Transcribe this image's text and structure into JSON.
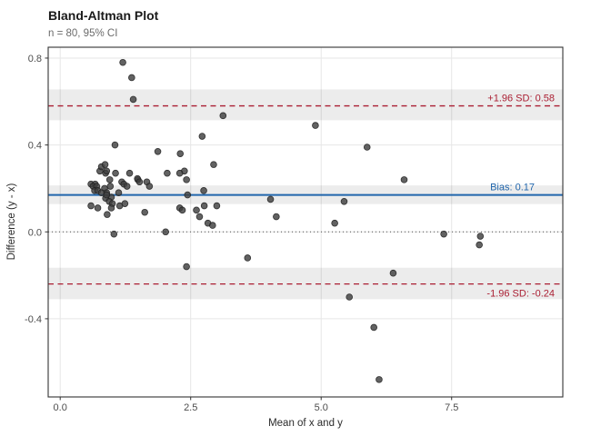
{
  "chart_data": {
    "type": "scatter",
    "title": "Bland-Altman Plot",
    "subtitle": "n = 80, 95% CI",
    "xlabel": "Mean of x and y",
    "ylabel": "Difference (y - x)",
    "xlim": [
      -0.23,
      9.63
    ],
    "ylim": [
      -0.76,
      0.85
    ],
    "x_ticks": [
      {
        "v": 0.0,
        "label": "0.0"
      },
      {
        "v": 2.5,
        "label": "2.5"
      },
      {
        "v": 5.0,
        "label": "5.0"
      },
      {
        "v": 7.5,
        "label": "7.5"
      }
    ],
    "y_ticks": [
      {
        "v": -0.4,
        "label": "-0.4"
      },
      {
        "v": 0.0,
        "label": "0.0"
      },
      {
        "v": 0.4,
        "label": "0.4"
      },
      {
        "v": 0.8,
        "label": "0.8"
      }
    ],
    "grid": true,
    "legend": "none",
    "zero_line": {
      "y": 0.0,
      "style": "dotted",
      "color": "#4d4d4d"
    },
    "reference_lines": [
      {
        "name": "upper-loa",
        "label": "+1.96 SD: 0.58",
        "y": 0.58,
        "ci": [
          0.514,
          0.656
        ],
        "color": "#aa1e32",
        "style": "dashed",
        "label_position": "above"
      },
      {
        "name": "bias",
        "label": "Bias: 0.17",
        "y": 0.17,
        "ci": [
          0.128,
          0.214
        ],
        "color": "#2166ac",
        "style": "solid",
        "label_position": "above"
      },
      {
        "name": "lower-loa",
        "label": "-1.96 SD: -0.24",
        "y": -0.24,
        "ci": [
          -0.31,
          -0.165
        ],
        "color": "#aa1e32",
        "style": "dashed",
        "label_position": "below"
      }
    ],
    "point_color": "#3f3f3f",
    "band_color": "#ececec",
    "grid_color": "#e6e6e6",
    "n_points": 80,
    "points": [
      [
        1.2,
        0.78
      ],
      [
        1.37,
        0.71
      ],
      [
        1.4,
        0.61
      ],
      [
        3.12,
        0.535
      ],
      [
        4.89,
        0.49
      ],
      [
        5.88,
        0.39
      ],
      [
        2.72,
        0.44
      ],
      [
        1.05,
        0.4
      ],
      [
        1.87,
        0.37
      ],
      [
        2.3,
        0.36
      ],
      [
        2.94,
        0.31
      ],
      [
        6.59,
        0.24
      ],
      [
        7.35,
        -0.01
      ],
      [
        8.05,
        -0.02
      ],
      [
        8.03,
        -0.06
      ],
      [
        6.38,
        -0.19
      ],
      [
        5.54,
        -0.3
      ],
      [
        6.01,
        -0.44
      ],
      [
        6.11,
        -0.68
      ],
      [
        3.59,
        -0.12
      ],
      [
        2.42,
        -0.16
      ],
      [
        1.03,
        -0.01
      ],
      [
        2.02,
        0.0
      ],
      [
        2.42,
        0.24
      ],
      [
        2.75,
        0.19
      ],
      [
        2.44,
        0.17
      ],
      [
        4.03,
        0.15
      ],
      [
        2.29,
        0.11
      ],
      [
        2.34,
        0.1
      ],
      [
        2.61,
        0.1
      ],
      [
        2.76,
        0.12
      ],
      [
        3.0,
        0.12
      ],
      [
        2.67,
        0.07
      ],
      [
        2.83,
        0.04
      ],
      [
        2.92,
        0.03
      ],
      [
        4.14,
        0.07
      ],
      [
        5.44,
        0.14
      ],
      [
        5.26,
        0.04
      ],
      [
        2.38,
        0.28
      ],
      [
        2.05,
        0.27
      ],
      [
        2.29,
        0.27
      ],
      [
        0.76,
        0.28
      ],
      [
        0.87,
        0.27
      ],
      [
        1.06,
        0.27
      ],
      [
        1.33,
        0.27
      ],
      [
        1.49,
        0.24
      ],
      [
        1.66,
        0.23
      ],
      [
        0.59,
        0.22
      ],
      [
        0.67,
        0.22
      ],
      [
        0.63,
        0.21
      ],
      [
        0.7,
        0.21
      ],
      [
        0.66,
        0.19
      ],
      [
        0.72,
        0.19
      ],
      [
        0.85,
        0.2
      ],
      [
        0.79,
        0.18
      ],
      [
        0.89,
        0.18
      ],
      [
        0.96,
        0.21
      ],
      [
        1.18,
        0.23
      ],
      [
        1.22,
        0.22
      ],
      [
        1.28,
        0.21
      ],
      [
        1.12,
        0.18
      ],
      [
        0.98,
        0.16
      ],
      [
        0.87,
        0.155
      ],
      [
        0.94,
        0.14
      ],
      [
        1.0,
        0.13
      ],
      [
        0.59,
        0.12
      ],
      [
        0.72,
        0.11
      ],
      [
        0.98,
        0.11
      ],
      [
        1.14,
        0.12
      ],
      [
        1.24,
        0.13
      ],
      [
        0.9,
        0.08
      ],
      [
        1.62,
        0.09
      ],
      [
        0.89,
        0.28
      ],
      [
        0.95,
        0.24
      ],
      [
        0.89,
        0.17
      ],
      [
        0.79,
        0.3
      ],
      [
        0.86,
        0.31
      ],
      [
        1.48,
        0.245
      ],
      [
        1.52,
        0.23
      ],
      [
        1.71,
        0.21
      ]
    ]
  }
}
